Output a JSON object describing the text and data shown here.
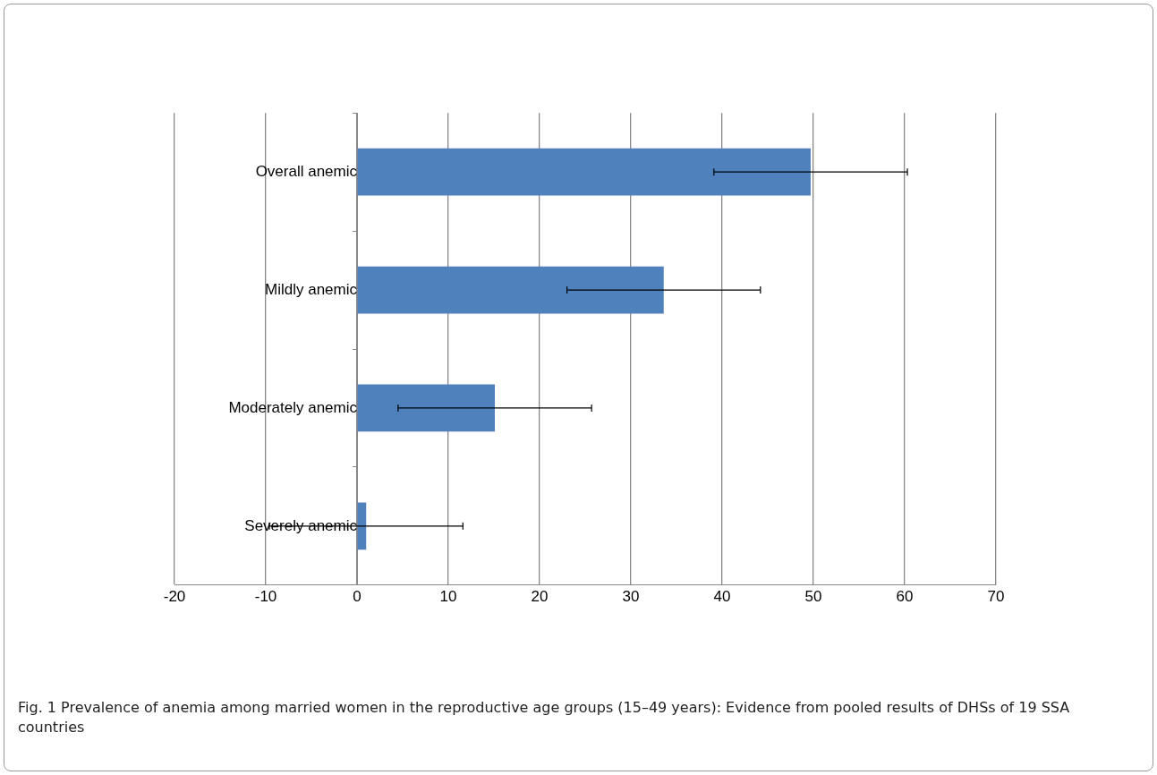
{
  "chart_data": {
    "type": "bar",
    "orientation": "horizontal",
    "title": "Fig. 1 Prevalence of anemia among married women in the reproductive age groups (15–49 years): Evidence from pooled results of DHSs of 19 SSA countries",
    "categories": [
      "Overall anemic",
      "Mildly anemic",
      "Moderately anemic",
      "Severely anemic"
    ],
    "values": [
      49.7,
      33.6,
      15.1,
      1.0
    ],
    "errors": [
      10.6,
      10.6,
      10.6,
      10.6
    ],
    "color": "#4f81bd",
    "xlim": [
      -20,
      70
    ],
    "xticks": [
      -20,
      -10,
      0,
      10,
      20,
      30,
      40,
      50,
      60,
      70
    ],
    "grid": "x",
    "legend": false
  }
}
